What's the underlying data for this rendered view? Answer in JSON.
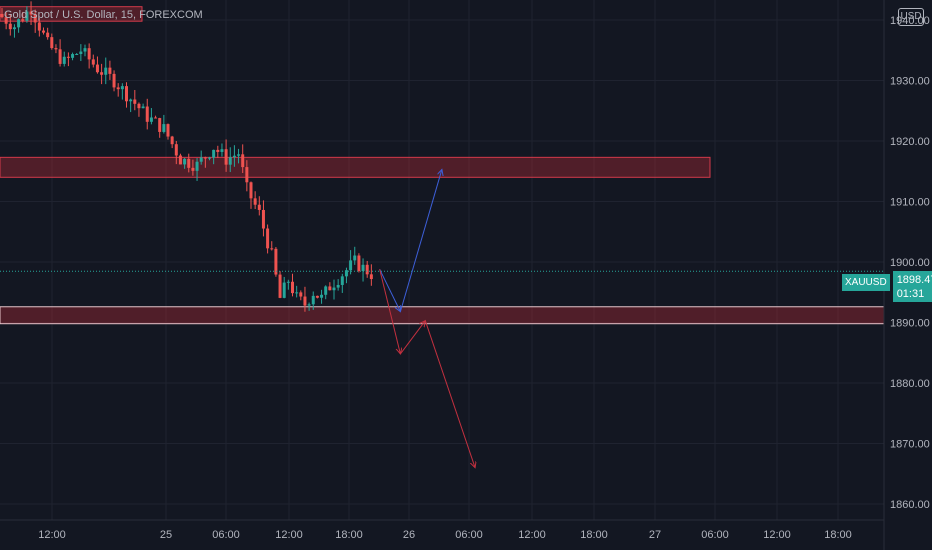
{
  "chart_data": {
    "type": "candlestick",
    "title": "Gold Spot / U.S. Dollar, 15, FOREXCOM",
    "currency_button": "USD",
    "symbol": "XAUUSD",
    "last_price": "1898.47",
    "countdown": "01:31",
    "ylim": [
      1858,
      1946
    ],
    "y_ticks": [
      {
        "value": 1940,
        "label": "1940.00"
      },
      {
        "value": 1930,
        "label": "1930.00"
      },
      {
        "value": 1920,
        "label": "1920.00"
      },
      {
        "value": 1910,
        "label": "1910.00"
      },
      {
        "value": 1900,
        "label": "1900.00"
      },
      {
        "value": 1890,
        "label": "1890.00"
      },
      {
        "value": 1880,
        "label": "1880.00"
      },
      {
        "value": 1870,
        "label": "1870.00"
      },
      {
        "value": 1860,
        "label": "1860.00"
      }
    ],
    "x_ticks": [
      "12:00",
      "25",
      "06:00",
      "12:00",
      "18:00",
      "26",
      "06:00",
      "12:00",
      "18:00",
      "27",
      "06:00",
      "12:00",
      "18:00"
    ],
    "price_path": [
      [
        0,
        1941
      ],
      [
        4,
        1939
      ],
      [
        8,
        1942
      ],
      [
        12,
        1936
      ],
      [
        16,
        1933
      ],
      [
        20,
        1935
      ],
      [
        24,
        1932
      ],
      [
        28,
        1930
      ],
      [
        32,
        1927
      ],
      [
        36,
        1924
      ],
      [
        40,
        1922
      ],
      [
        44,
        1917
      ],
      [
        48,
        1916
      ],
      [
        52,
        1919
      ],
      [
        55,
        1917
      ],
      [
        58,
        1918
      ],
      [
        60,
        1912
      ],
      [
        63,
        1908
      ],
      [
        66,
        1901
      ],
      [
        68,
        1894
      ],
      [
        70,
        1897
      ],
      [
        72,
        1894
      ],
      [
        74,
        1893
      ],
      [
        76,
        1895
      ],
      [
        78,
        1894
      ],
      [
        80,
        1896
      ],
      [
        83,
        1898
      ],
      [
        86,
        1900
      ],
      [
        88,
        1899
      ],
      [
        90,
        1898
      ]
    ],
    "zones": [
      {
        "top": 1942.2,
        "bottom": 1939.8,
        "color": "#f23645"
      },
      {
        "top": 1917.3,
        "bottom": 1914.0,
        "color": "#f23645"
      },
      {
        "top": 1892.6,
        "bottom": 1889.8,
        "color": "#f23645"
      }
    ],
    "projections": [
      {
        "color": "#3d5fd9",
        "points": [
          [
            91,
            1898.8
          ],
          [
            96,
            1891.8
          ],
          [
            106,
            1915.3
          ]
        ]
      },
      {
        "color": "#c2303f",
        "points": [
          [
            91,
            1898.8
          ],
          [
            96,
            1884.8
          ],
          [
            102,
            1890.3
          ],
          [
            114,
            1866.0
          ]
        ]
      }
    ]
  }
}
